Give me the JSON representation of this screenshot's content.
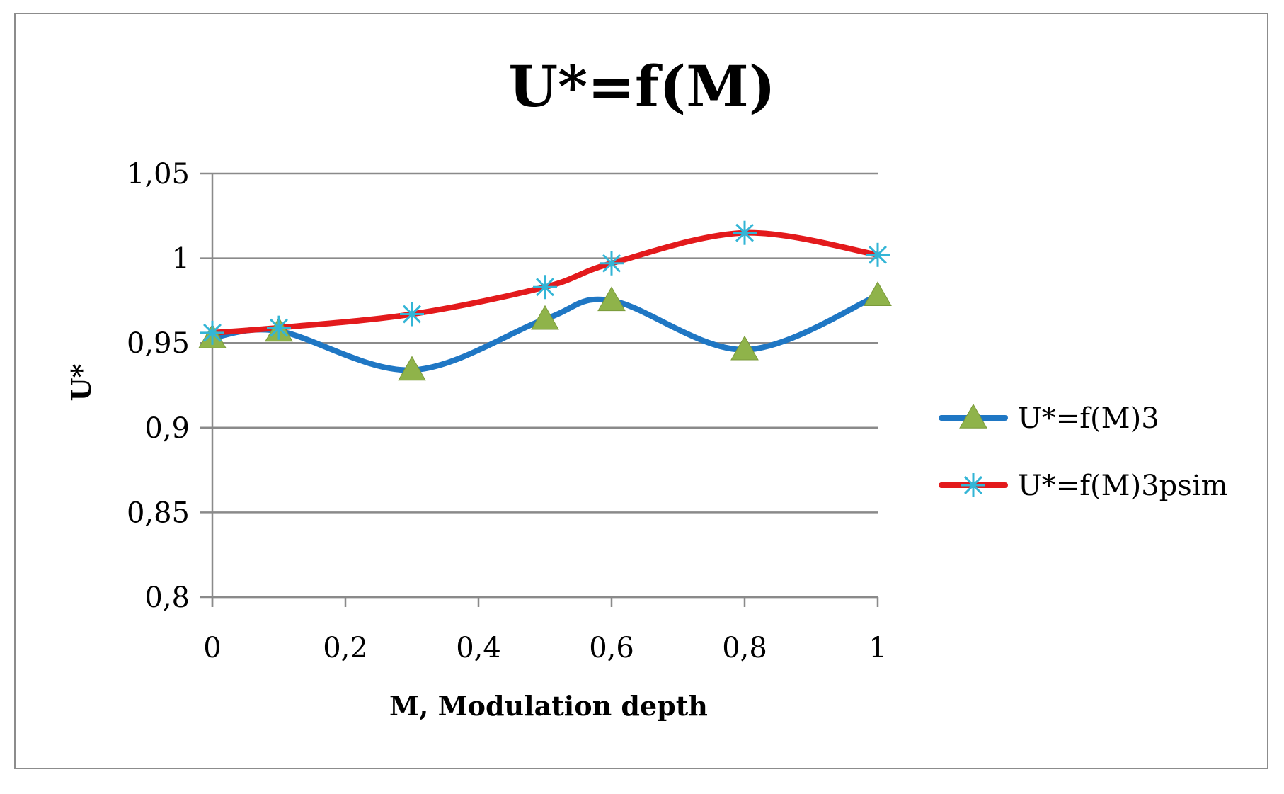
{
  "chart_data": {
    "type": "line",
    "title": "U*=f(M)",
    "xlabel": "M, Modulation depth",
    "ylabel": "U*",
    "xlim": [
      0,
      1
    ],
    "ylim": [
      0.8,
      1.05
    ],
    "x_ticks": [
      0,
      0.2,
      0.4,
      0.6,
      0.8,
      1
    ],
    "x_tick_labels": [
      "0",
      "0,2",
      "0,4",
      "0,6",
      "0,8",
      "1"
    ],
    "y_ticks": [
      0.8,
      0.85,
      0.9,
      0.95,
      1,
      1.05
    ],
    "y_tick_labels": [
      "0,8",
      "0,85",
      "0,9",
      "0,95",
      "1",
      "1,05"
    ],
    "grid": "horizontal",
    "legend_position": "right",
    "series": [
      {
        "name": "U*=f(M)3",
        "color": "#1f77c4",
        "marker": "triangle",
        "marker_color": "#8fb34a",
        "x": [
          0,
          0.1,
          0.3,
          0.5,
          0.6,
          0.8,
          1
        ],
        "values": [
          0.953,
          0.957,
          0.934,
          0.964,
          0.975,
          0.946,
          0.978
        ]
      },
      {
        "name": "U*=f(M)3psim",
        "color": "#e31a1c",
        "marker": "asterisk",
        "marker_color": "#33b5d6",
        "x": [
          0,
          0.1,
          0.3,
          0.5,
          0.6,
          0.8,
          1
        ],
        "values": [
          0.956,
          0.959,
          0.967,
          0.983,
          0.997,
          1.015,
          1.002
        ]
      }
    ]
  }
}
